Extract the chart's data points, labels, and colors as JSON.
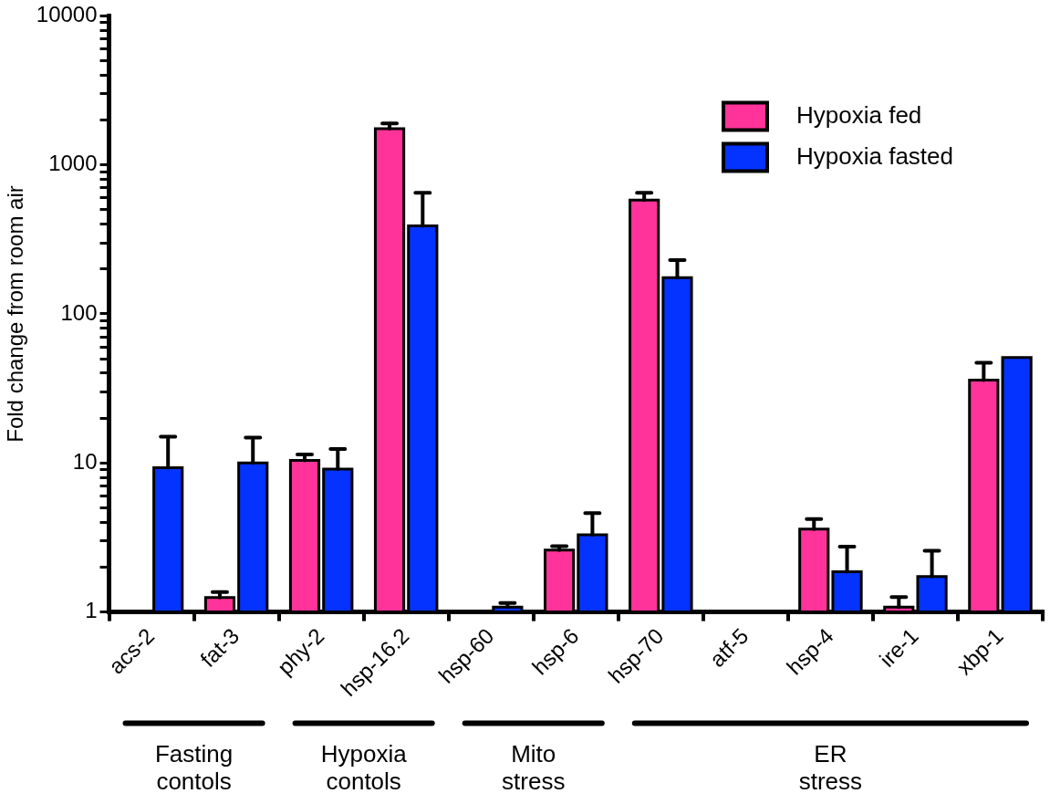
{
  "chart_data": {
    "type": "bar",
    "ylabel": "Fold change from room air",
    "categories": [
      "acs-2",
      "fat-3",
      "phy-2",
      "hsp-16.2",
      "hsp-60",
      "hsp-6",
      "hsp-70",
      "atf-5",
      "hsp-4",
      "ire-1",
      "xbp-1"
    ],
    "series": [
      {
        "name": "Hypoxia fed",
        "color": "#ff3399",
        "values": [
          null,
          1.25,
          10.4,
          1750,
          1,
          2.6,
          580,
          null,
          3.6,
          1.08,
          36
        ],
        "errors": [
          null,
          [
            1.25,
            1.36
          ],
          [
            10.4,
            11.4
          ],
          [
            1750,
            1900
          ],
          null,
          [
            2.6,
            2.76
          ],
          [
            580,
            650
          ],
          null,
          [
            3.6,
            4.2
          ],
          [
            1.08,
            1.26
          ],
          [
            36,
            47
          ]
        ]
      },
      {
        "name": "Hypoxia fasted",
        "color": "#0433ff",
        "values": [
          9.3,
          10,
          9.1,
          390,
          1.08,
          3.3,
          175,
          null,
          1.86,
          1.73,
          51
        ],
        "errors": [
          [
            9.3,
            15
          ],
          [
            10,
            14.8
          ],
          [
            9.1,
            12.4
          ],
          [
            390,
            650
          ],
          [
            1.08,
            1.15
          ],
          [
            3.3,
            4.6
          ],
          [
            175,
            230
          ],
          null,
          [
            1.86,
            2.74
          ],
          [
            1.73,
            2.58
          ],
          null
        ]
      }
    ],
    "log": true,
    "ylim": [
      1,
      10000
    ],
    "yticks": [
      1,
      {
        "value": 2,
        "label": null
      },
      {
        "value": 3,
        "label": null
      },
      {
        "value": 4,
        "label": null
      },
      {
        "value": 5,
        "label": null
      },
      {
        "value": 6,
        "label": null
      },
      {
        "value": 7,
        "label": null
      },
      {
        "value": 8,
        "label": null
      },
      {
        "value": 9,
        "label": null
      },
      10,
      {
        "value": 20,
        "label": null
      },
      {
        "value": 30,
        "label": null
      },
      {
        "value": 40,
        "label": null
      },
      {
        "value": 50,
        "label": null
      },
      {
        "value": 60,
        "label": null
      },
      {
        "value": 70,
        "label": null
      },
      {
        "value": 80,
        "label": null
      },
      {
        "value": 90,
        "label": null
      },
      100,
      {
        "value": 200,
        "label": null
      },
      {
        "value": 300,
        "label": null
      },
      {
        "value": 400,
        "label": null
      },
      {
        "value": 500,
        "label": null
      },
      {
        "value": 600,
        "label": null
      },
      {
        "value": 700,
        "label": null
      },
      {
        "value": 800,
        "label": null
      },
      {
        "value": 900,
        "label": null
      },
      1000,
      {
        "value": 2000,
        "label": null
      },
      {
        "value": 3000,
        "label": null
      },
      {
        "value": 4000,
        "label": null
      },
      {
        "value": 5000,
        "label": null
      },
      {
        "value": 6000,
        "label": null
      },
      {
        "value": 7000,
        "label": null
      },
      {
        "value": 8000,
        "label": null
      },
      {
        "value": 9000,
        "label": null
      },
      10000
    ],
    "grid": false,
    "legend": "top right",
    "annotations": [
      "Fasting contols",
      "Hypoxia contols",
      "Mito stress",
      "ER stress"
    ]
  }
}
